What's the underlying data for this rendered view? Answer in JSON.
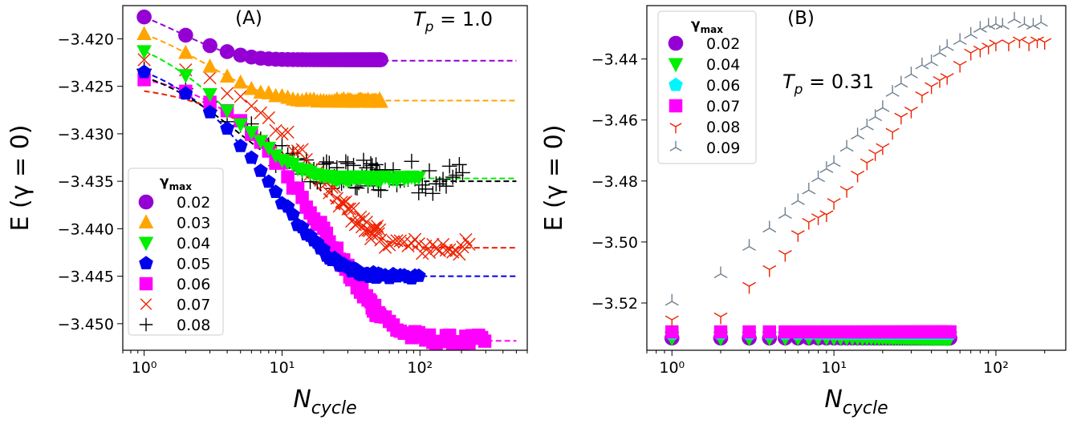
{
  "chart_data": [
    {
      "type": "scatter",
      "panel_label": "(A)",
      "annotation": {
        "text": "T",
        "sub": "p",
        "rest": " = 1.0"
      },
      "xlabel": {
        "text": "N",
        "sub": "cycle"
      },
      "ylabel": "E (γ = 0)",
      "xscale": "log",
      "xlim": [
        0.7,
        600
      ],
      "ylim": [
        -3.4528,
        -3.4165
      ],
      "xticks": [
        {
          "value": 1,
          "label": "10⁰"
        },
        {
          "value": 10,
          "label": "10¹"
        },
        {
          "value": 100,
          "label": "10²"
        }
      ],
      "yticks": [
        -3.42,
        -3.425,
        -3.43,
        -3.435,
        -3.44,
        -3.445,
        -3.45
      ],
      "ytick_labels": [
        "−3.420",
        "−3.425",
        "−3.430",
        "−3.435",
        "−3.440",
        "−3.445",
        "−3.450"
      ],
      "legend": {
        "title": "γ",
        "title_sub": "max",
        "position": "lower-left"
      },
      "series": [
        {
          "name": "0.02",
          "color": "#9400d3",
          "marker": "circle",
          "start": -3.4177,
          "plateau": -3.4222,
          "tau": 1.8,
          "nmax": 52,
          "noise": 0.0,
          "fit": {
            "start": -3.4177,
            "plateau": -3.4223,
            "tau": 1.8
          }
        },
        {
          "name": "0.03",
          "color": "#ffa500",
          "marker": "triangle-up",
          "start": -3.4195,
          "plateau": -3.4265,
          "tau": 3.0,
          "nmax": 52,
          "noise": 0.00015,
          "fit": {
            "start": -3.4195,
            "plateau": -3.4265,
            "tau": 3.0
          }
        },
        {
          "name": "0.04",
          "color": "#00ee00",
          "marker": "triangle-down",
          "start": -3.4213,
          "plateau": -3.4347,
          "tau": 4.8,
          "nmax": 102,
          "noise": 0.0002,
          "fit": {
            "start": -3.4213,
            "plateau": -3.4347,
            "tau": 4.8
          }
        },
        {
          "name": "0.05",
          "color": "#0000ee",
          "marker": "pentagon",
          "start": -3.4235,
          "plateau": -3.445,
          "tau": 9.0,
          "nmax": 102,
          "noise": 0.0003,
          "fit": {
            "start": -3.4235,
            "plateau": -3.445,
            "tau": 9.0
          }
        },
        {
          "name": "0.06",
          "color": "#ff00ff",
          "marker": "square",
          "start": -3.4243,
          "plateau": -3.4518,
          "tau": 22.0,
          "nmax": 300,
          "noise": 0.0006,
          "fit": {
            "start": -3.4243,
            "plateau": -3.4518,
            "tau": 22.0
          }
        },
        {
          "name": "0.07",
          "color": "#ee2200",
          "marker": "x",
          "start": -3.4222,
          "plateau": -3.442,
          "tau": 18.0,
          "nmax": 230,
          "noise": 0.0009,
          "fit": {
            "start": -3.4255,
            "plateau": -3.442,
            "tau": 18.0
          }
        },
        {
          "name": "0.08",
          "color": "#000000",
          "marker": "plus",
          "start": -3.4232,
          "plateau": -3.4345,
          "tau": 5.0,
          "nmax": 210,
          "noise": 0.0018,
          "fit": {
            "start": -3.424,
            "plateau": -3.435,
            "tau": 5.0
          }
        }
      ],
      "fit_line_xmax": 500
    },
    {
      "type": "scatter",
      "panel_label": "(B)",
      "annotation": {
        "text": "T",
        "sub": "p",
        "rest": " = 0.31"
      },
      "xlabel": {
        "text": "N",
        "sub": "cycle"
      },
      "ylabel": "E (γ = 0)",
      "xscale": "log",
      "xlim": [
        0.7,
        270
      ],
      "ylim": [
        -3.5355,
        -3.4225
      ],
      "xticks": [
        {
          "value": 1,
          "label": "10⁰"
        },
        {
          "value": 10,
          "label": "10¹"
        },
        {
          "value": 100,
          "label": "10²"
        }
      ],
      "yticks": [
        -3.44,
        -3.46,
        -3.48,
        -3.5,
        -3.52
      ],
      "ytick_labels": [
        "−3.44",
        "−3.46",
        "−3.48",
        "−3.50",
        "−3.52"
      ],
      "legend": {
        "title": "γ",
        "title_sub": "max",
        "position": "upper-left"
      },
      "series": [
        {
          "name": "0.02",
          "color": "#9400d3",
          "marker": "circle",
          "kind": "flat",
          "value": -3.5315,
          "nmax": 52
        },
        {
          "name": "0.04",
          "color": "#00ee00",
          "marker": "triangle-down",
          "kind": "flat",
          "value": -3.5315,
          "nmax": 52
        },
        {
          "name": "0.06",
          "color": "#00f5ff",
          "marker": "pentagon",
          "kind": "flat",
          "value": -3.53,
          "nmax": 52
        },
        {
          "name": "0.07",
          "color": "#ff00ff",
          "marker": "square",
          "kind": "flat",
          "value": -3.5295,
          "nmax": 52
        },
        {
          "name": "0.08",
          "color": "#ee2200",
          "marker": "tri-down",
          "kind": "rise",
          "points": [
            [
              1,
              -3.5255
            ],
            [
              2,
              -3.5245
            ],
            [
              3,
              -3.5145
            ],
            [
              4,
              -3.509
            ],
            [
              5,
              -3.504
            ],
            [
              6,
              -3.4975
            ],
            [
              7,
              -3.4935
            ],
            [
              8,
              -3.492
            ],
            [
              9,
              -3.491
            ],
            [
              10,
              -3.487
            ],
            [
              12,
              -3.483
            ],
            [
              14,
              -3.478
            ],
            [
              16,
              -3.474
            ],
            [
              18,
              -3.471
            ],
            [
              20,
              -3.469
            ],
            [
              23,
              -3.464
            ],
            [
              26,
              -3.459
            ],
            [
              30,
              -3.457
            ],
            [
              35,
              -3.452
            ],
            [
              40,
              -3.449
            ],
            [
              45,
              -3.447
            ],
            [
              50,
              -3.446
            ],
            [
              60,
              -3.442
            ],
            [
              70,
              -3.438
            ],
            [
              80,
              -3.437
            ],
            [
              90,
              -3.436
            ],
            [
              100,
              -3.435
            ],
            [
              120,
              -3.435
            ],
            [
              140,
              -3.434
            ],
            [
              160,
              -3.435
            ],
            [
              180,
              -3.434
            ],
            [
              200,
              -3.4345
            ]
          ]
        },
        {
          "name": "0.09",
          "color": "#708090",
          "marker": "tri-up",
          "kind": "rise",
          "points": [
            [
              1,
              -3.5195
            ],
            [
              2,
              -3.5105
            ],
            [
              3,
              -3.5015
            ],
            [
              4,
              -3.4955
            ],
            [
              5,
              -3.491
            ],
            [
              6,
              -3.4865
            ],
            [
              7,
              -3.483
            ],
            [
              8,
              -3.479
            ],
            [
              9,
              -3.476
            ],
            [
              10,
              -3.474
            ],
            [
              12,
              -3.469
            ],
            [
              14,
              -3.465
            ],
            [
              16,
              -3.462
            ],
            [
              18,
              -3.459
            ],
            [
              20,
              -3.456
            ],
            [
              23,
              -3.451
            ],
            [
              26,
              -3.448
            ],
            [
              30,
              -3.445
            ],
            [
              35,
              -3.442
            ],
            [
              40,
              -3.441
            ],
            [
              45,
              -3.438
            ],
            [
              50,
              -3.436
            ],
            [
              60,
              -3.434
            ],
            [
              70,
              -3.432
            ],
            [
              80,
              -3.43
            ],
            [
              90,
              -3.429
            ],
            [
              100,
              -3.4285
            ],
            [
              110,
              -3.429
            ],
            [
              130,
              -3.427
            ],
            [
              150,
              -3.4285
            ],
            [
              170,
              -3.429
            ],
            [
              190,
              -3.428
            ]
          ]
        }
      ]
    }
  ]
}
